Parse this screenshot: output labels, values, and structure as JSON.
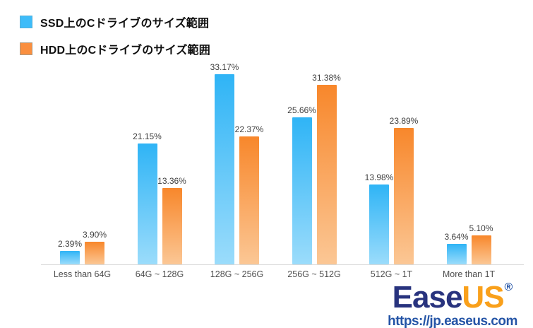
{
  "chart_data": {
    "type": "bar",
    "title": "",
    "xlabel": "",
    "ylabel": "",
    "ylim": [
      0,
      35
    ],
    "grid": false,
    "value_labels_shown": true,
    "legend_position": "top-left",
    "categories": [
      "Less than 64G",
      "64G ~ 128G",
      "128G ~ 256G",
      "256G ~ 512G",
      "512G ~ 1T",
      "More than 1T"
    ],
    "series": [
      {
        "name": "SSD上のCドライブのサイズ範囲",
        "values": [
          2.39,
          21.15,
          33.17,
          25.66,
          13.98,
          3.64
        ],
        "labels": [
          "2.39%",
          "21.15%",
          "33.17%",
          "25.66%",
          "13.98%",
          "3.64%"
        ],
        "color_top": "#2FB4F6",
        "color_bottom": "#9BDCFB",
        "legend_color": "#3EBCF9"
      },
      {
        "name": "HDD上のCドライブのサイズ範囲",
        "values": [
          3.9,
          13.36,
          22.37,
          31.38,
          23.89,
          5.1
        ],
        "labels": [
          "3.90%",
          "13.36%",
          "22.37%",
          "31.38%",
          "23.89%",
          "5.10%"
        ],
        "color_top": "#F8872B",
        "color_bottom": "#FBC795",
        "legend_color": "#FA8F3F"
      }
    ]
  },
  "legend": {
    "items": [
      {
        "label": "SSD上のCドライブのサイズ範囲",
        "color": "#3EBCF9"
      },
      {
        "label": "HDD上のCドライブのサイズ範囲",
        "color": "#FA8F3F"
      }
    ]
  },
  "brand": {
    "logo_part1": "Ease",
    "logo_part2": "US",
    "registered_mark": "®",
    "url": "https://jp.easeus.com",
    "logo_primary_color": "#28337E",
    "logo_accent_color": "#F9A01B",
    "url_color": "#2454A6"
  }
}
